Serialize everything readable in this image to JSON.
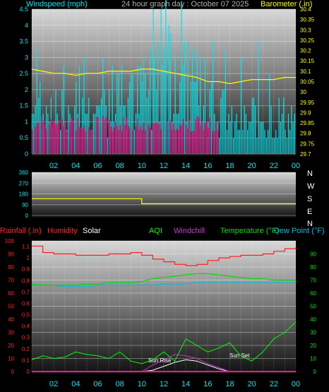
{
  "header": {
    "left_label": "Windspeed (mph)",
    "center_label": "24 hour graph day : October 07 2025",
    "right_label": "Barometer (.in)"
  },
  "wind_panel": {
    "left_ticks": [
      "0",
      "0.5",
      "1",
      "1.5",
      "2",
      "2.5",
      "3",
      "3.5",
      "4",
      "4.5"
    ],
    "right_ticks": [
      "29.7",
      "29.75",
      "29.8",
      "29.85",
      "29.9",
      "29.95",
      "30",
      "30.05",
      "30.1",
      "30.15",
      "30.2",
      "30.25",
      "30.3",
      "30.35",
      "30.4"
    ],
    "x_ticks": [
      "02",
      "04",
      "06",
      "08",
      "10",
      "12",
      "14",
      "16",
      "18",
      "20",
      "22",
      "00"
    ]
  },
  "direction_panel": {
    "left_ticks": [
      "0",
      "90",
      "180",
      "270",
      "360"
    ],
    "compass": [
      "N",
      "W",
      "S",
      "E",
      "N"
    ]
  },
  "bottom_panel": {
    "headers": {
      "rainfall": "Rainfall (.in)",
      "humidity": "Humidity",
      "solar": "Solar",
      "aqi": "AQI",
      "windchill": "Windchill",
      "temperature": "Temperature (°F)",
      "dewpoint": "Dew Point (°F)"
    },
    "left_pct_ticks": [
      "0",
      "10",
      "20",
      "30",
      "40",
      "50",
      "60",
      "70",
      "80",
      "90",
      "100"
    ],
    "left_rain_ticks": [
      "0",
      "0.1",
      "0.2",
      "0.3",
      "0.4",
      "0.5",
      "0.6",
      "0.7",
      "0.8",
      "0.9",
      "1",
      "1.1"
    ],
    "right_temp_ticks": [
      "0",
      "10",
      "20",
      "30",
      "40",
      "50",
      "60",
      "70",
      "80",
      "90"
    ],
    "x_ticks": [
      "02",
      "04",
      "06",
      "08",
      "10",
      "12",
      "14",
      "16",
      "18",
      "20",
      "22",
      "00"
    ],
    "sunrise_label": "Sun Rise",
    "sunset_label": "Sun Set"
  },
  "colors": {
    "wind_bar": "#00e5ee",
    "gust_bar": "#ff1493",
    "barometer": "#ffff00",
    "direction": "#ffff00",
    "humidity": "#ff2020",
    "temperature": "#00dd00",
    "dewpoint": "#00bbdd",
    "aqi": "#00ff00",
    "windchill": "#cc33cc",
    "solar": "#ffffff",
    "left_axis": "#00e5ee",
    "right_axis": "#ffff00"
  },
  "chart_data": [
    {
      "type": "bar",
      "x": [
        "00",
        "01",
        "02",
        "03",
        "04",
        "05",
        "06",
        "07",
        "08",
        "09",
        "10",
        "11",
        "12",
        "13",
        "14",
        "15",
        "16",
        "17",
        "18",
        "19",
        "20",
        "21",
        "22",
        "23",
        "24"
      ],
      "series": [
        {
          "name": "Windspeed (mph)",
          "values": [
            1.1,
            1.6,
            1.4,
            1.1,
            1.4,
            1.2,
            1.3,
            1.8,
            1.5,
            1.8,
            1.6,
            2.6,
            3.5,
            3.2,
            2.8,
            2.2,
            1.7,
            1.6,
            1.0,
            0.8,
            1.1,
            1.2,
            1.2,
            1.1,
            1.1
          ]
        },
        {
          "name": "Barometer (.in)",
          "values": [
            30.11,
            30.1,
            30.09,
            30.09,
            30.08,
            30.09,
            30.09,
            30.1,
            30.1,
            30.1,
            30.11,
            30.11,
            30.1,
            30.09,
            30.08,
            30.07,
            30.05,
            30.05,
            30.04,
            30.05,
            30.06,
            30.06,
            30.06,
            30.07,
            30.07
          ]
        }
      ],
      "ylim": [
        0,
        4.5
      ],
      "y2lim": [
        29.7,
        30.4
      ]
    },
    {
      "type": "line",
      "x": [
        "00",
        "02",
        "04",
        "06",
        "08",
        "10",
        "10",
        "12",
        "14",
        "16",
        "18",
        "20",
        "22",
        "24"
      ],
      "series": [
        {
          "values": [
            140,
            140,
            140,
            140,
            140,
            140,
            98,
            98,
            98,
            98,
            98,
            98,
            98,
            98
          ]
        }
      ],
      "ylim": [
        0,
        360
      ]
    },
    {
      "type": "line",
      "x": [
        "00",
        "01",
        "02",
        "03",
        "04",
        "05",
        "06",
        "07",
        "08",
        "09",
        "10",
        "11",
        "12",
        "13",
        "14",
        "15",
        "16",
        "17",
        "18",
        "19",
        "20",
        "21",
        "22",
        "23",
        "24"
      ],
      "series": [
        {
          "name": "Humidity",
          "values": [
            96,
            91,
            90,
            90,
            89,
            89,
            89,
            90,
            90,
            91,
            89,
            86,
            84,
            82,
            81,
            82,
            85,
            87,
            88,
            89,
            89,
            90,
            92,
            94,
            95
          ]
        },
        {
          "name": "Temperature (°F)",
          "values": [
            67,
            66,
            66,
            66,
            66,
            67,
            67,
            68,
            68,
            68,
            69,
            71,
            72,
            73,
            74,
            75,
            75,
            74,
            73,
            72,
            71,
            71,
            70,
            70,
            70
          ]
        },
        {
          "name": "Dew Point (°F)",
          "values": [
            66,
            66,
            66,
            65,
            65,
            65,
            66,
            66,
            66,
            66,
            66,
            66,
            67,
            67,
            67,
            68,
            68,
            68,
            68,
            68,
            68,
            68,
            68,
            68,
            68
          ]
        },
        {
          "name": "AQI",
          "values": [
            9,
            12,
            10,
            11,
            15,
            13,
            12,
            10,
            15,
            8,
            6,
            9,
            15,
            8,
            25,
            20,
            15,
            18,
            22,
            12,
            8,
            15,
            25,
            30,
            38
          ]
        },
        {
          "name": "Windchill",
          "values": [
            0,
            0,
            0,
            0,
            0,
            0,
            0,
            0,
            0,
            0,
            0,
            5,
            9,
            13,
            12,
            10,
            6,
            3,
            0,
            0,
            0,
            0,
            0,
            0,
            0
          ]
        },
        {
          "name": "Solar",
          "values": [
            0,
            0,
            0,
            0,
            0,
            0,
            0,
            0,
            0,
            0,
            0,
            1,
            4,
            7,
            9,
            8,
            5,
            2,
            0,
            0,
            0,
            0,
            0,
            0,
            0
          ]
        }
      ],
      "ylim": [
        0,
        100
      ],
      "y2lim": [
        0,
        100
      ]
    }
  ]
}
